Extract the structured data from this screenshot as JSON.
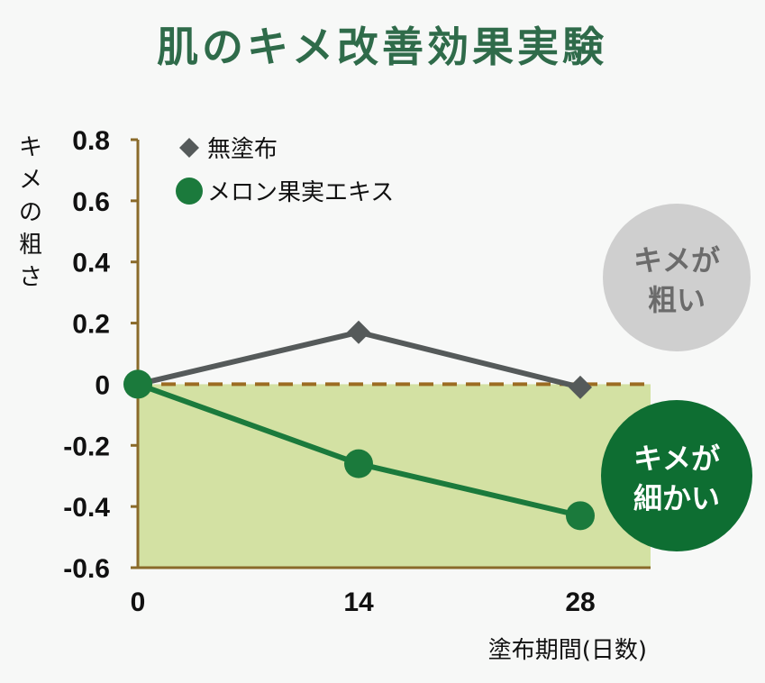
{
  "chart_data": {
    "type": "line",
    "title": "肌のキメ改善効果実験",
    "ylabel": "キメの粗さ",
    "xlabel": "塗布期間(日数)",
    "x": [
      0,
      14,
      28
    ],
    "x_tick_labels": [
      "0",
      "14",
      "28"
    ],
    "ylim": [
      -0.6,
      0.8
    ],
    "y_ticks": [
      0.8,
      0.6,
      0.4,
      0.2,
      0,
      -0.2,
      -0.4,
      -0.6
    ],
    "y_tick_labels": [
      "0.8",
      "0.6",
      "0.4",
      "0.2",
      "0",
      "-0.2",
      "-0.4",
      "-0.6"
    ],
    "legend_placement": "top-left",
    "series": [
      {
        "name": "無塗布",
        "values": [
          0,
          0.17,
          -0.01
        ],
        "marker": "diamond",
        "color": "#555a5a"
      },
      {
        "name": "メロン果実エキス",
        "values": [
          0,
          -0.26,
          -0.43
        ],
        "marker": "circle",
        "color": "#1b7a3c"
      }
    ],
    "annotations": [
      {
        "line1": "キメが",
        "line2": "粗い",
        "fill": "#cfcfcf",
        "text_color": "#6b6b6b"
      },
      {
        "line1": "キメが",
        "line2": "細かい",
        "fill": "#0e6e32",
        "text_color": "#ffffff"
      }
    ]
  },
  "colors": {
    "title": "#2f6b4a",
    "axis": "#8a6a2a",
    "zero_line": "#9b6c22",
    "negative_area": "#d3e1a3"
  }
}
